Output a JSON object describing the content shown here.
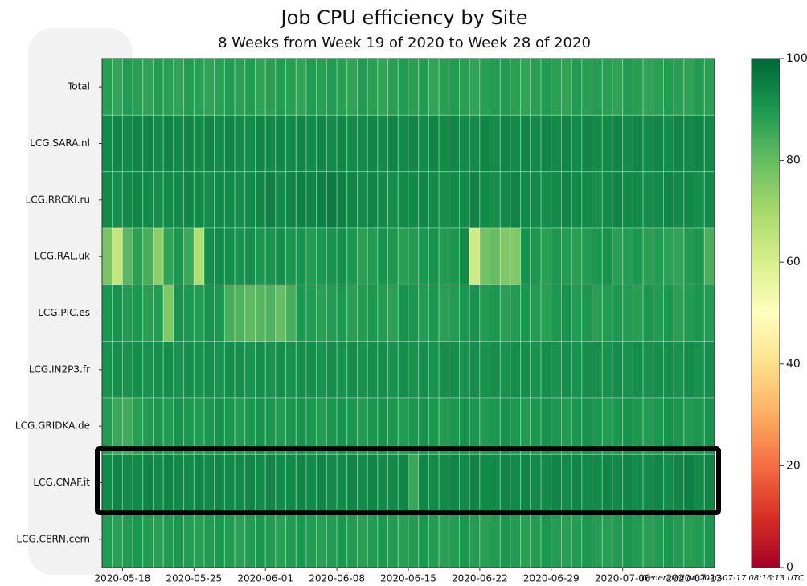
{
  "chart_data": {
    "type": "heatmap",
    "title": "Job CPU efficiency by Site",
    "subtitle": "8 Weeks from Week 19 of 2020 to Week 28 of 2020",
    "footer": "Generated on 2020-07-17 08:16:13 UTC",
    "colormap": "RdYlGn",
    "xlim": [
      "2020-05-16",
      "2020-07-15"
    ],
    "xticks": [
      "2020-05-18",
      "2020-05-25",
      "2020-06-01",
      "2020-06-08",
      "2020-06-15",
      "2020-06-22",
      "2020-06-29",
      "2020-07-06",
      "2020-07-13"
    ],
    "clim": [
      0,
      100
    ],
    "cticks": [
      0,
      20,
      40,
      60,
      80,
      100
    ],
    "series": [
      {
        "name": "Total",
        "values": [
          88,
          87,
          89,
          88,
          87,
          89,
          88,
          87,
          89,
          88,
          87,
          88,
          89,
          88,
          89,
          87,
          88,
          89,
          88,
          87,
          89,
          88,
          89,
          88,
          87,
          89,
          88,
          87,
          88,
          89,
          88,
          89,
          87,
          88,
          89,
          88,
          87,
          88,
          89,
          89,
          88,
          87,
          88,
          89,
          88,
          87,
          89,
          88,
          89,
          88,
          87,
          89,
          88,
          87,
          88,
          89,
          88,
          87,
          89,
          88
        ]
      },
      {
        "name": "LCG.SARA.nl",
        "values": [
          93,
          94,
          93,
          94,
          94,
          93,
          94,
          93,
          94,
          93,
          94,
          93,
          94,
          93,
          93,
          94,
          93,
          94,
          93,
          94,
          93,
          94,
          93,
          94,
          93,
          93,
          94,
          93,
          94,
          93,
          94,
          93,
          94,
          93,
          94,
          93,
          93,
          94,
          93,
          94,
          93,
          94,
          93,
          94,
          93,
          94,
          93,
          94,
          93,
          93,
          94,
          93,
          94,
          93,
          94,
          93,
          94,
          93,
          94,
          93
        ]
      },
      {
        "name": "LCG.RRCKI.ru",
        "values": [
          93,
          92,
          93,
          94,
          93,
          92,
          93,
          93,
          94,
          93,
          92,
          93,
          93,
          92,
          93,
          94,
          95,
          93,
          94,
          95,
          94,
          95,
          96,
          95,
          94,
          93,
          94,
          93,
          92,
          93,
          93,
          94,
          93,
          92,
          93,
          93,
          94,
          93,
          92,
          93,
          94,
          93,
          93,
          92,
          93,
          94,
          93,
          93,
          92,
          93,
          94,
          93,
          93,
          92,
          93,
          94,
          93,
          93,
          92,
          93
        ]
      },
      {
        "name": "LCG.RAL.uk",
        "values": [
          77,
          64,
          82,
          88,
          84,
          74,
          87,
          90,
          86,
          68,
          92,
          93,
          92,
          91,
          92,
          90,
          91,
          92,
          90,
          91,
          89,
          90,
          91,
          92,
          90,
          88,
          89,
          91,
          90,
          88,
          89,
          90,
          91,
          89,
          90,
          93,
          62,
          78,
          80,
          76,
          76,
          91,
          90,
          88,
          90,
          89,
          88,
          89,
          90,
          91,
          88,
          89,
          90,
          88,
          89,
          88,
          87,
          89,
          90,
          84
        ]
      },
      {
        "name": "LCG.PIC.es",
        "values": [
          90,
          91,
          89,
          90,
          88,
          89,
          76,
          91,
          90,
          89,
          91,
          90,
          84,
          83,
          81,
          82,
          83,
          80,
          84,
          90,
          89,
          88,
          89,
          90,
          88,
          89,
          90,
          89,
          88,
          91,
          90,
          89,
          90,
          88,
          89,
          90,
          91,
          89,
          90,
          88,
          89,
          90,
          89,
          88,
          90,
          91,
          89,
          90,
          88,
          89,
          90,
          89,
          88,
          90,
          89,
          90,
          88,
          89,
          90,
          89
        ]
      },
      {
        "name": "LCG.IN2P3.fr",
        "values": [
          91,
          92,
          91,
          92,
          91,
          92,
          92,
          91,
          92,
          91,
          92,
          91,
          92,
          92,
          91,
          92,
          91,
          92,
          91,
          92,
          92,
          91,
          92,
          91,
          92,
          91,
          92,
          92,
          91,
          92,
          91,
          92,
          91,
          92,
          92,
          91,
          92,
          91,
          92,
          91,
          92,
          92,
          91,
          92,
          91,
          92,
          91,
          92,
          92,
          91,
          92,
          91,
          92,
          91,
          92,
          92,
          91,
          92,
          91,
          92
        ]
      },
      {
        "name": "LCG.GRIDKA.de",
        "values": [
          89,
          86,
          85,
          88,
          89,
          90,
          89,
          91,
          90,
          89,
          90,
          91,
          90,
          89,
          90,
          91,
          90,
          89,
          90,
          91,
          90,
          89,
          90,
          91,
          90,
          89,
          90,
          91,
          90,
          89,
          90,
          91,
          90,
          89,
          90,
          91,
          90,
          89,
          90,
          91,
          90,
          89,
          90,
          91,
          90,
          89,
          90,
          91,
          90,
          89,
          90,
          91,
          90,
          89,
          90,
          91,
          90,
          89,
          90,
          91
        ]
      },
      {
        "name": "LCG.CNAF.it",
        "values": [
          93,
          94,
          93,
          93,
          94,
          93,
          94,
          93,
          93,
          94,
          93,
          94,
          93,
          93,
          94,
          93,
          94,
          93,
          93,
          94,
          93,
          94,
          93,
          93,
          94,
          93,
          94,
          93,
          93,
          94,
          86,
          94,
          93,
          93,
          94,
          93,
          94,
          93,
          93,
          94,
          93,
          94,
          93,
          93,
          94,
          93,
          94,
          93,
          93,
          94,
          93,
          94,
          93,
          93,
          94,
          93,
          94,
          95,
          93,
          94
        ]
      },
      {
        "name": "LCG.CERN.cern",
        "values": [
          89,
          88,
          89,
          90,
          89,
          88,
          89,
          90,
          89,
          88,
          89,
          90,
          89,
          88,
          89,
          90,
          89,
          88,
          89,
          90,
          89,
          88,
          89,
          90,
          89,
          88,
          89,
          90,
          89,
          88,
          89,
          90,
          89,
          88,
          89,
          90,
          89,
          88,
          89,
          90,
          89,
          88,
          89,
          90,
          89,
          88,
          89,
          90,
          89,
          88,
          89,
          90,
          89,
          88,
          89,
          90,
          89,
          88,
          89,
          90
        ]
      }
    ]
  }
}
